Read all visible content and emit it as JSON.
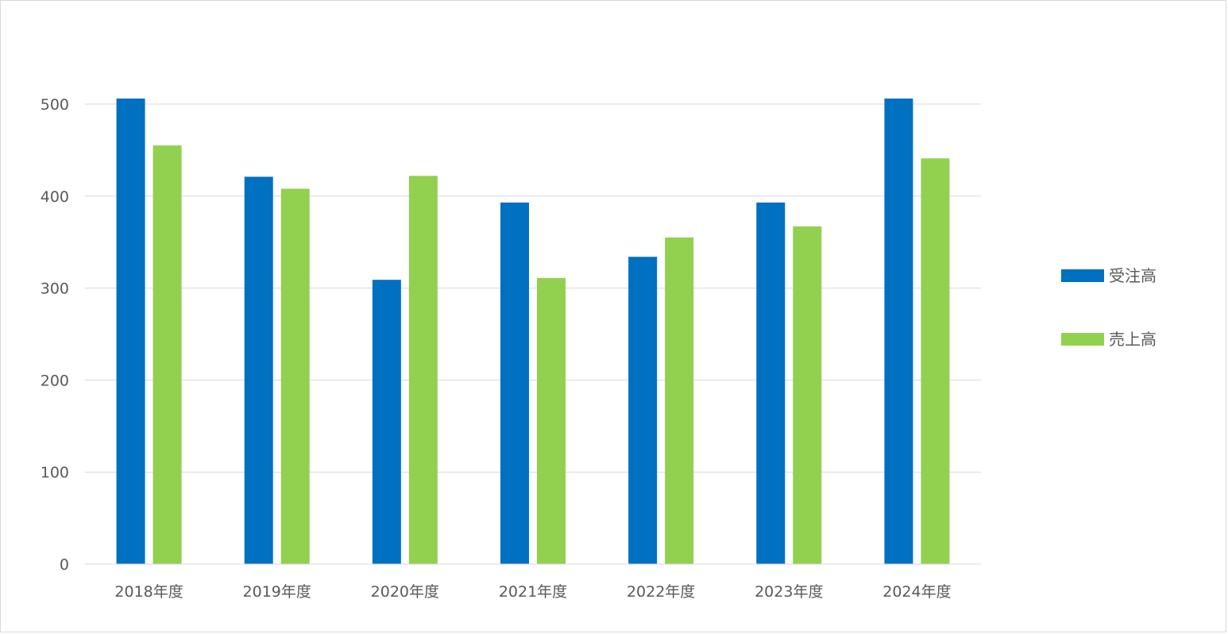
{
  "chart_data": {
    "type": "bar",
    "title": "",
    "xlabel": "",
    "ylabel": "",
    "categories": [
      "2018年度",
      "2019年度",
      "2020年度",
      "2021年度",
      "2022年度",
      "2023年度",
      "2024年度"
    ],
    "series": [
      {
        "name": "受注高",
        "color": "#0070c0",
        "values": [
          506,
          421,
          309,
          393,
          334,
          393,
          506
        ]
      },
      {
        "name": "売上高",
        "color": "#92d050",
        "values": [
          455,
          408,
          422,
          311,
          355,
          367,
          441
        ]
      }
    ],
    "ylim": [
      0,
      500
    ],
    "yticks": [
      0,
      100,
      200,
      300,
      400,
      500
    ],
    "grid": true,
    "legend": "right"
  }
}
